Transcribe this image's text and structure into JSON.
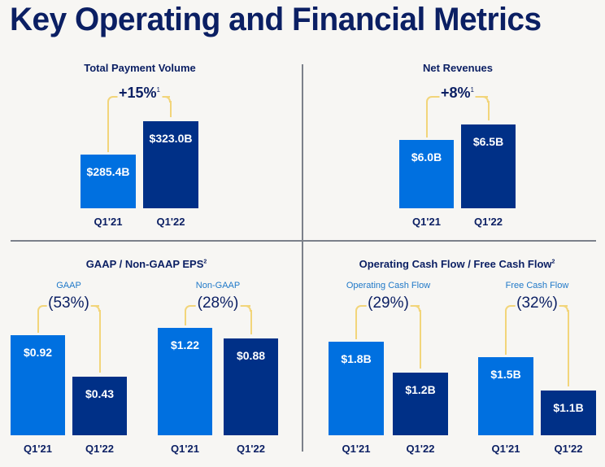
{
  "title": "Key Operating and Financial Metrics",
  "colors": {
    "prior_bar": "#0070E0",
    "current_bar": "#003087",
    "bracket": "#F2D57A",
    "heading": "#0B1F63",
    "subtitle": "#1F78C8",
    "background": "#F7F6F3"
  },
  "panels": {
    "tpv": {
      "title": "Total Payment Volume",
      "footnote": ""
    },
    "rev": {
      "title": "Net Revenues",
      "footnote": ""
    },
    "eps": {
      "title": "GAAP / Non-GAAP EPS",
      "footnote": "2"
    },
    "cf": {
      "title": "Operating Cash Flow / Free Cash Flow",
      "footnote": "2"
    }
  },
  "chart_data": [
    {
      "type": "bar",
      "id": "tpv",
      "title": "Total Payment Volume",
      "subtitle": "",
      "categories": [
        "Q1'21",
        "Q1'22"
      ],
      "values": [
        285.4,
        323.0
      ],
      "value_labels": [
        "$285.4B",
        "$323.0B"
      ],
      "unit": "$B",
      "change": "+15%",
      "change_footnote": "1"
    },
    {
      "type": "bar",
      "id": "rev",
      "title": "Net Revenues",
      "subtitle": "",
      "categories": [
        "Q1'21",
        "Q1'22"
      ],
      "values": [
        6.0,
        6.5
      ],
      "value_labels": [
        "$6.0B",
        "$6.5B"
      ],
      "unit": "$B",
      "change": "+8%",
      "change_footnote": "1"
    },
    {
      "type": "bar",
      "id": "gaap",
      "title": "GAAP / Non-GAAP EPS",
      "subtitle": "GAAP",
      "categories": [
        "Q1'21",
        "Q1'22"
      ],
      "values": [
        0.92,
        0.43
      ],
      "value_labels": [
        "$0.92",
        "$0.43"
      ],
      "unit": "$",
      "change": "(53%)",
      "change_footnote": ""
    },
    {
      "type": "bar",
      "id": "nongaap",
      "title": "GAAP / Non-GAAP EPS",
      "subtitle": "Non-GAAP",
      "categories": [
        "Q1'21",
        "Q1'22"
      ],
      "values": [
        1.22,
        0.88
      ],
      "value_labels": [
        "$1.22",
        "$0.88"
      ],
      "unit": "$",
      "change": "(28%)",
      "change_footnote": ""
    },
    {
      "type": "bar",
      "id": "ocf",
      "title": "Operating Cash Flow / Free Cash Flow",
      "subtitle": "Operating Cash Flow",
      "categories": [
        "Q1'21",
        "Q1'22"
      ],
      "values": [
        1.8,
        1.2
      ],
      "value_labels": [
        "$1.8B",
        "$1.2B"
      ],
      "unit": "$B",
      "change": "(29%)",
      "change_footnote": ""
    },
    {
      "type": "bar",
      "id": "fcf",
      "title": "Operating Cash Flow / Free Cash Flow",
      "subtitle": "Free Cash Flow",
      "categories": [
        "Q1'21",
        "Q1'22"
      ],
      "values": [
        1.5,
        1.1
      ],
      "value_labels": [
        "$1.5B",
        "$1.1B"
      ],
      "unit": "$B",
      "change": "(32%)",
      "change_footnote": ""
    }
  ]
}
